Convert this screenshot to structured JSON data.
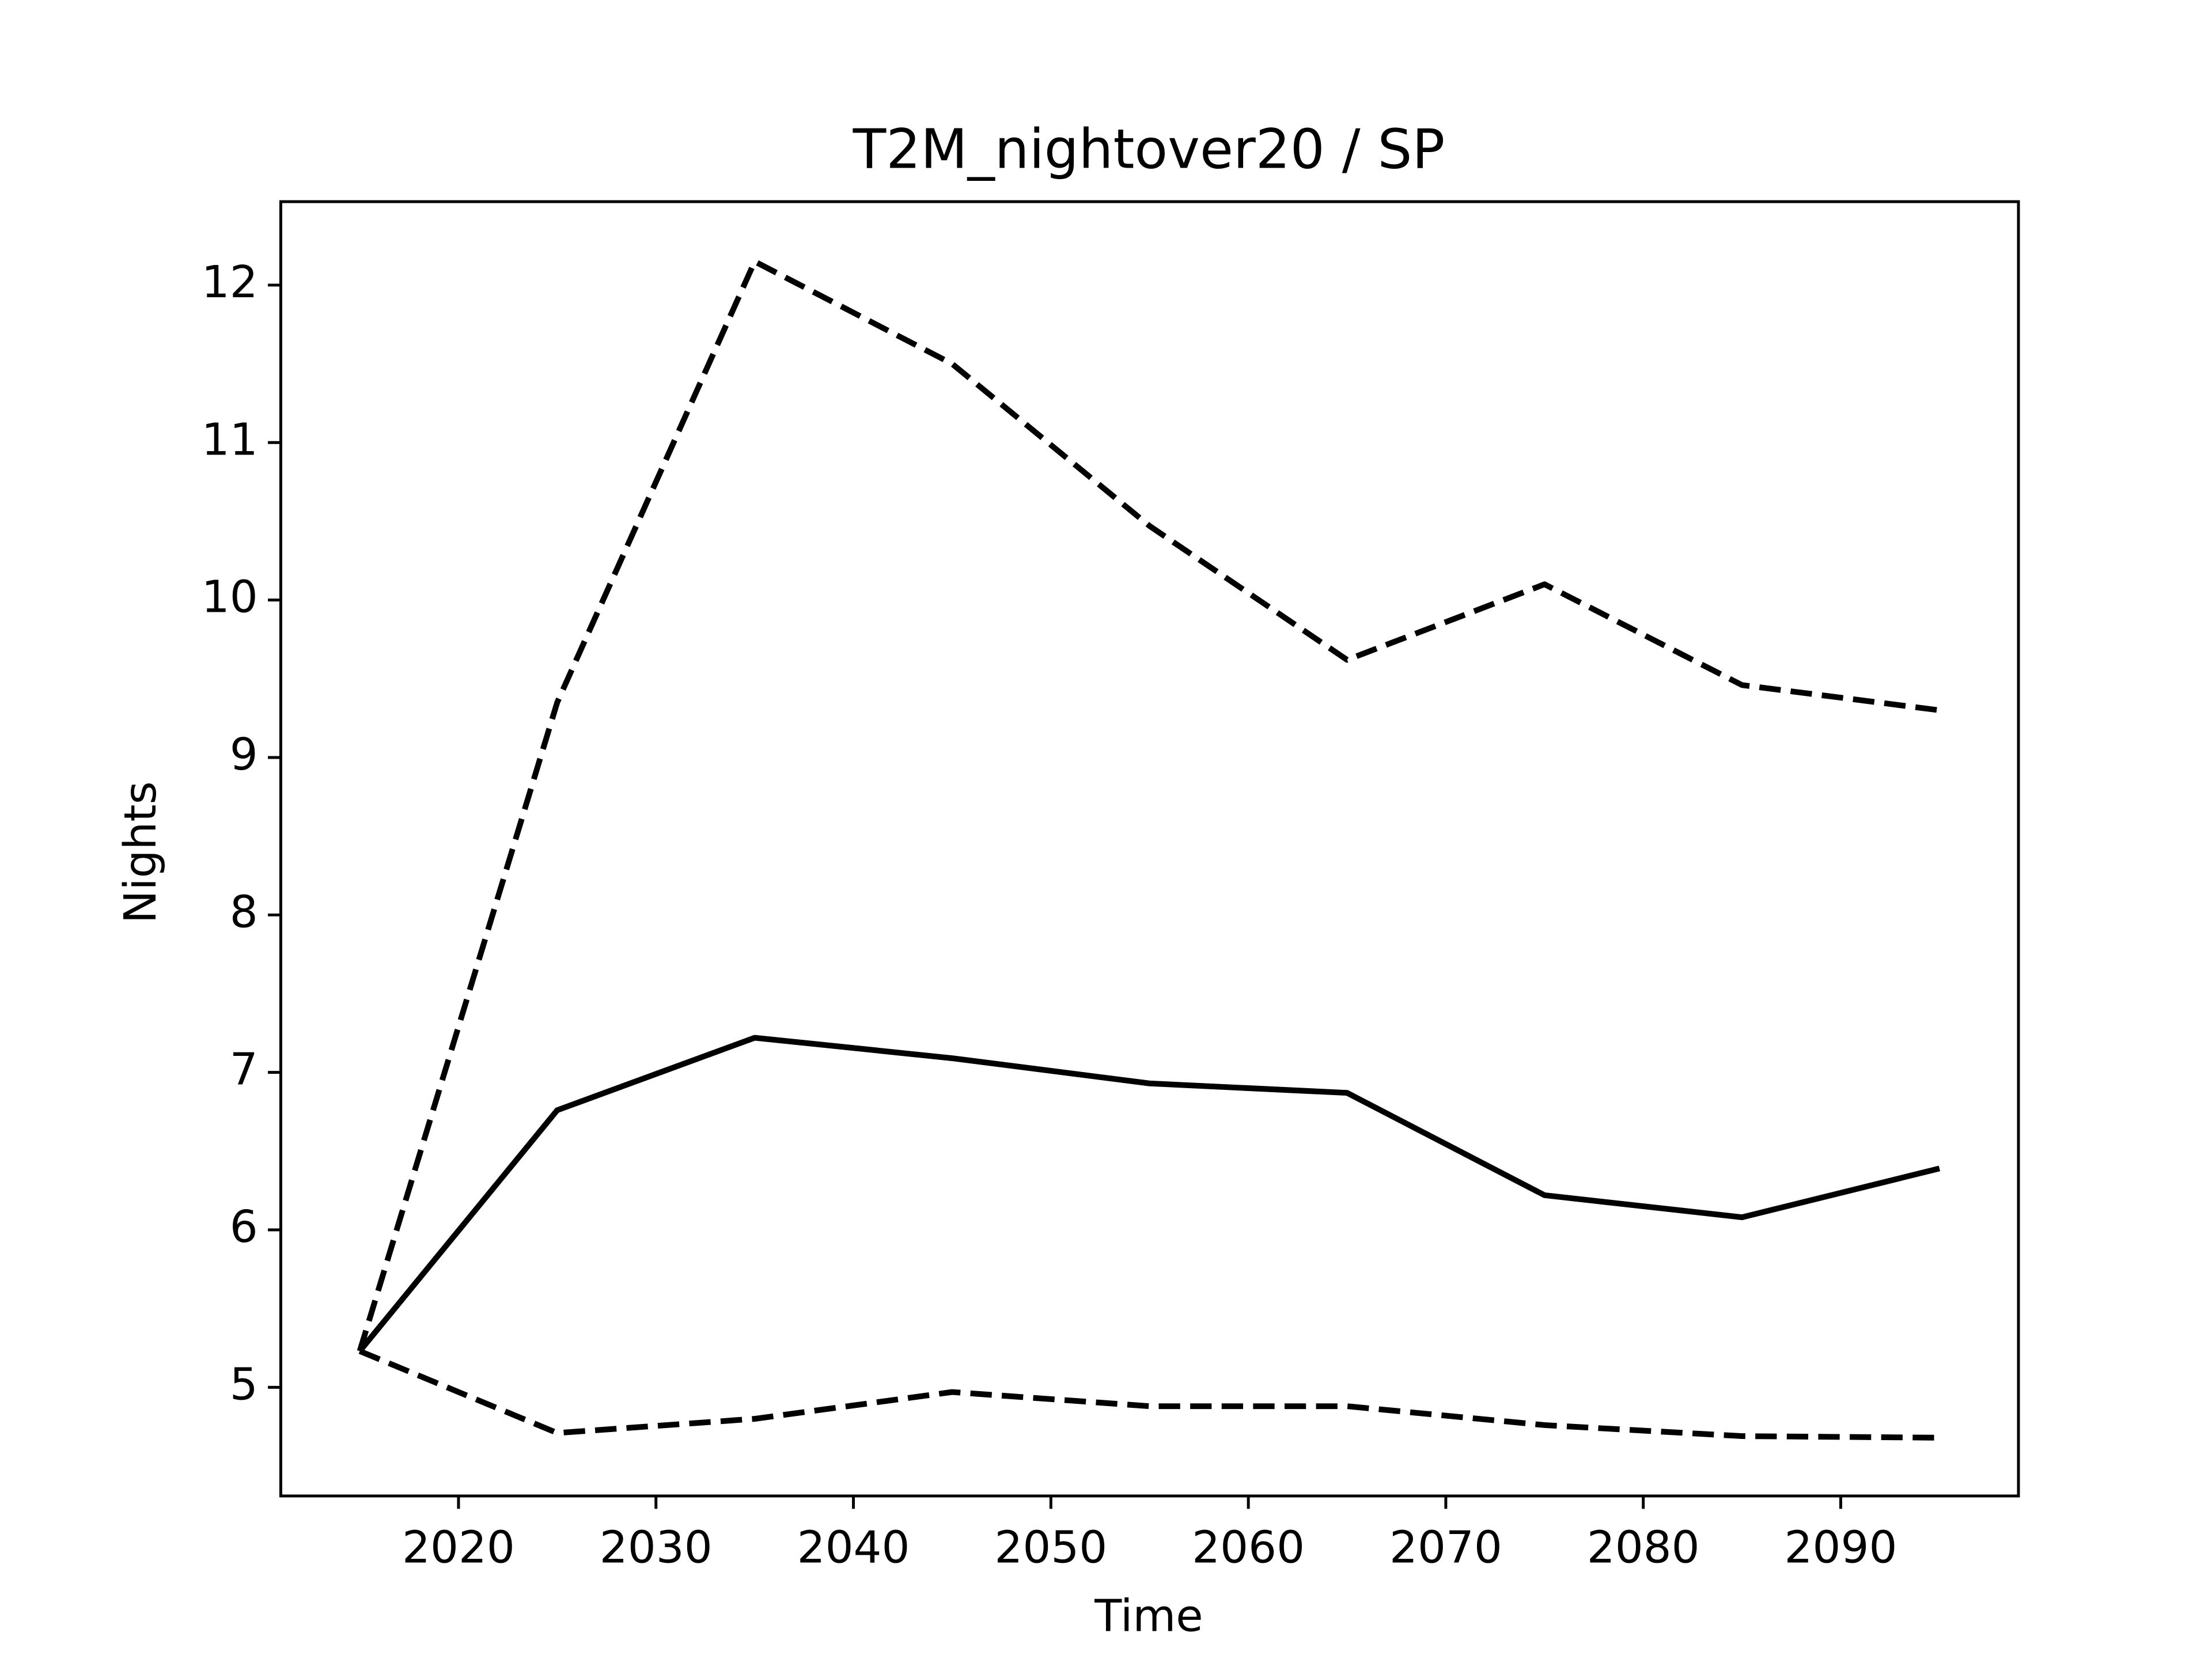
{
  "chart_data": {
    "type": "line",
    "title": "T2M_nightover20 / SP",
    "xlabel": "Time",
    "ylabel": "Nights",
    "x": [
      2015,
      2025,
      2035,
      2045,
      2055,
      2065,
      2075,
      2085,
      2095
    ],
    "series": [
      {
        "color": "#000000",
        "linestyle": "solid",
        "values": [
          5.23,
          6.76,
          7.22,
          7.09,
          6.93,
          6.87,
          6.22,
          6.08,
          6.39
        ]
      },
      {
        "color": "#000000",
        "linestyle": "dashed",
        "values": [
          5.23,
          9.35,
          12.15,
          11.5,
          10.47,
          9.62,
          10.1,
          9.46,
          9.3
        ]
      },
      {
        "color": "#000000",
        "linestyle": "dashed",
        "values": [
          5.23,
          4.71,
          4.8,
          4.97,
          4.88,
          4.88,
          4.76,
          4.69,
          4.68
        ]
      }
    ],
    "xlim": [
      2011,
      2099
    ],
    "ylim": [
      4.31,
      12.53
    ],
    "xticks": [
      2020,
      2030,
      2040,
      2050,
      2060,
      2070,
      2080,
      2090
    ],
    "yticks": [
      5,
      6,
      7,
      8,
      9,
      10,
      11,
      12
    ],
    "grid": false
  }
}
